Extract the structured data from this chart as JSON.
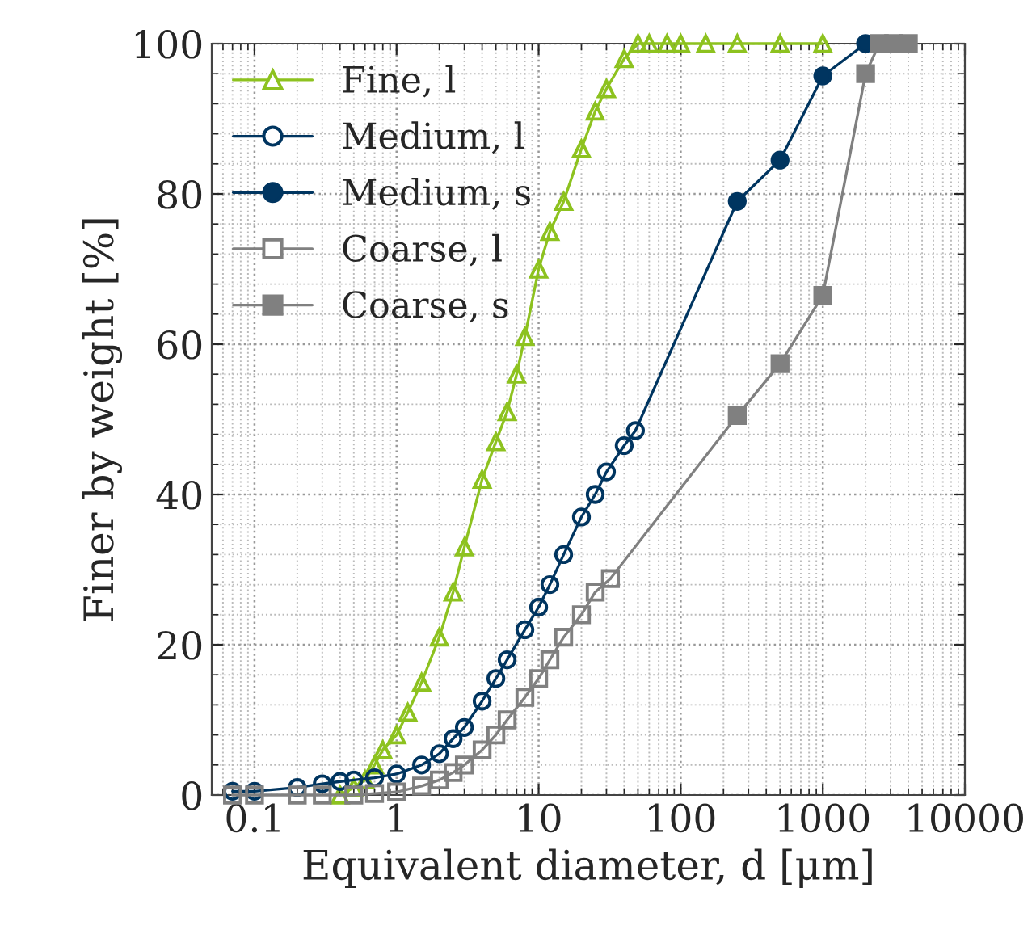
{
  "chart_data": {
    "type": "line",
    "xlabel": "Equivalent diameter, d [μm]",
    "ylabel": "Finer by weight [%]",
    "log": "x",
    "xlim": [
      0.05,
      10000
    ],
    "xticks": [
      0.1,
      1,
      10,
      100,
      1000,
      10000
    ],
    "ylim": [
      0,
      100
    ],
    "yticks": [
      0,
      20,
      40,
      60,
      80,
      100
    ],
    "grid": true,
    "legend": "top left",
    "line_style": "solid",
    "series": [
      {
        "name": "Fine, l",
        "color": "#8dc21f",
        "marker": "triangle",
        "x": [
          0.4,
          0.5,
          0.6,
          0.7,
          0.8,
          1.0,
          1.2,
          1.5,
          2,
          2.5,
          3,
          4,
          5,
          6,
          7,
          8,
          10,
          12,
          15,
          20,
          25,
          30,
          40,
          50,
          60,
          80,
          100,
          150,
          250,
          500,
          1000
        ],
        "values": [
          0,
          1,
          2,
          4,
          6,
          8,
          11,
          15,
          21,
          27,
          33,
          42,
          47,
          51,
          56,
          61,
          70,
          75,
          79,
          86,
          91,
          94,
          98,
          100,
          100,
          100,
          100,
          100,
          100,
          100,
          100
        ]
      },
      {
        "name": "Medium, l",
        "color": "#003560",
        "marker": "circle",
        "x": [
          0.07,
          0.1,
          0.2,
          0.3,
          0.4,
          0.5,
          0.7,
          1,
          1.5,
          2,
          2.5,
          3,
          4,
          5,
          6,
          8,
          10,
          12,
          15,
          20,
          25,
          30,
          40,
          48
        ],
        "values": [
          0.5,
          0.5,
          1,
          1.5,
          1.8,
          2,
          2.3,
          2.8,
          4,
          5.5,
          7.5,
          9,
          12.5,
          15.5,
          18,
          22,
          25,
          28,
          32,
          37,
          40,
          43,
          46.5,
          48.5
        ]
      },
      {
        "name": "Medium, s",
        "color": "#003560",
        "marker": "circle",
        "x": [
          48,
          250,
          500,
          1000,
          2000
        ],
        "values": [
          48.5,
          79,
          84.5,
          95.7,
          100
        ]
      },
      {
        "name": "Coarse, l",
        "color": "#808080",
        "marker": "square",
        "x": [
          0.07,
          0.1,
          0.2,
          0.3,
          0.5,
          0.7,
          1,
          1.5,
          2,
          2.5,
          3,
          4,
          5,
          6,
          8,
          10,
          12,
          15,
          20,
          25,
          32
        ],
        "values": [
          0,
          0,
          0,
          0,
          0,
          0.2,
          0.4,
          1.2,
          2,
          3,
          4,
          6,
          8,
          10,
          13,
          15.5,
          18,
          21,
          24,
          27,
          28.8
        ]
      },
      {
        "name": "Coarse, s",
        "color": "#808080",
        "marker": "square",
        "x": [
          32,
          250,
          500,
          1000,
          2000,
          2500,
          3150,
          4000
        ],
        "values": [
          28.8,
          50.5,
          57.4,
          66.5,
          96,
          100,
          100,
          100
        ]
      }
    ]
  }
}
